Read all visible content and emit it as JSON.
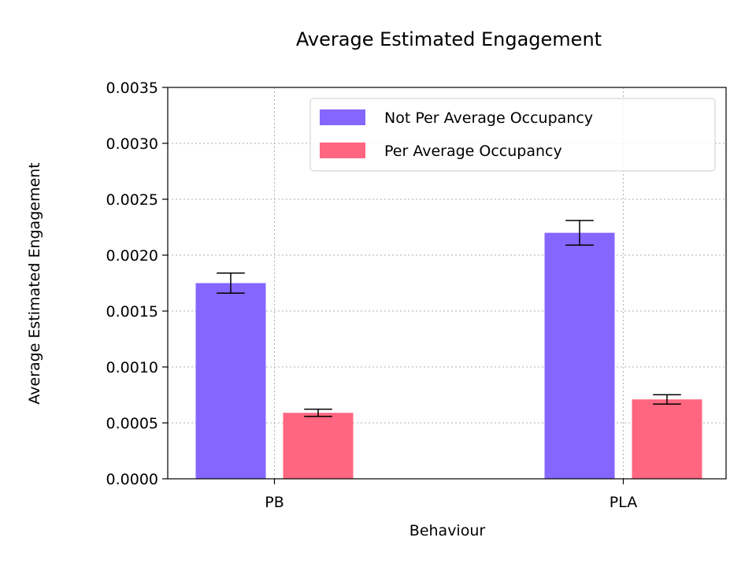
{
  "chart_data": {
    "type": "bar",
    "title": "Average Estimated Engagement",
    "xlabel": "Behaviour",
    "ylabel": "Average Estimated Engagement",
    "categories": [
      "PB",
      "PLA"
    ],
    "series": [
      {
        "name": "Not Per Average Occupancy",
        "values": [
          0.00175,
          0.0022
        ],
        "errors": [
          9e-05,
          0.00011
        ],
        "color": "#8566ff"
      },
      {
        "name": "Per Average Occupancy",
        "values": [
          0.00059,
          0.00071
        ],
        "errors": [
          3.2e-05,
          4.2e-05
        ],
        "color": "#ff6680"
      }
    ],
    "ylim": [
      0,
      0.0035
    ],
    "yticks": [
      "0.0000",
      "0.0005",
      "0.0010",
      "0.0015",
      "0.0020",
      "0.0025",
      "0.0030",
      "0.0035"
    ],
    "grid": true,
    "legend_position": "top-right"
  }
}
